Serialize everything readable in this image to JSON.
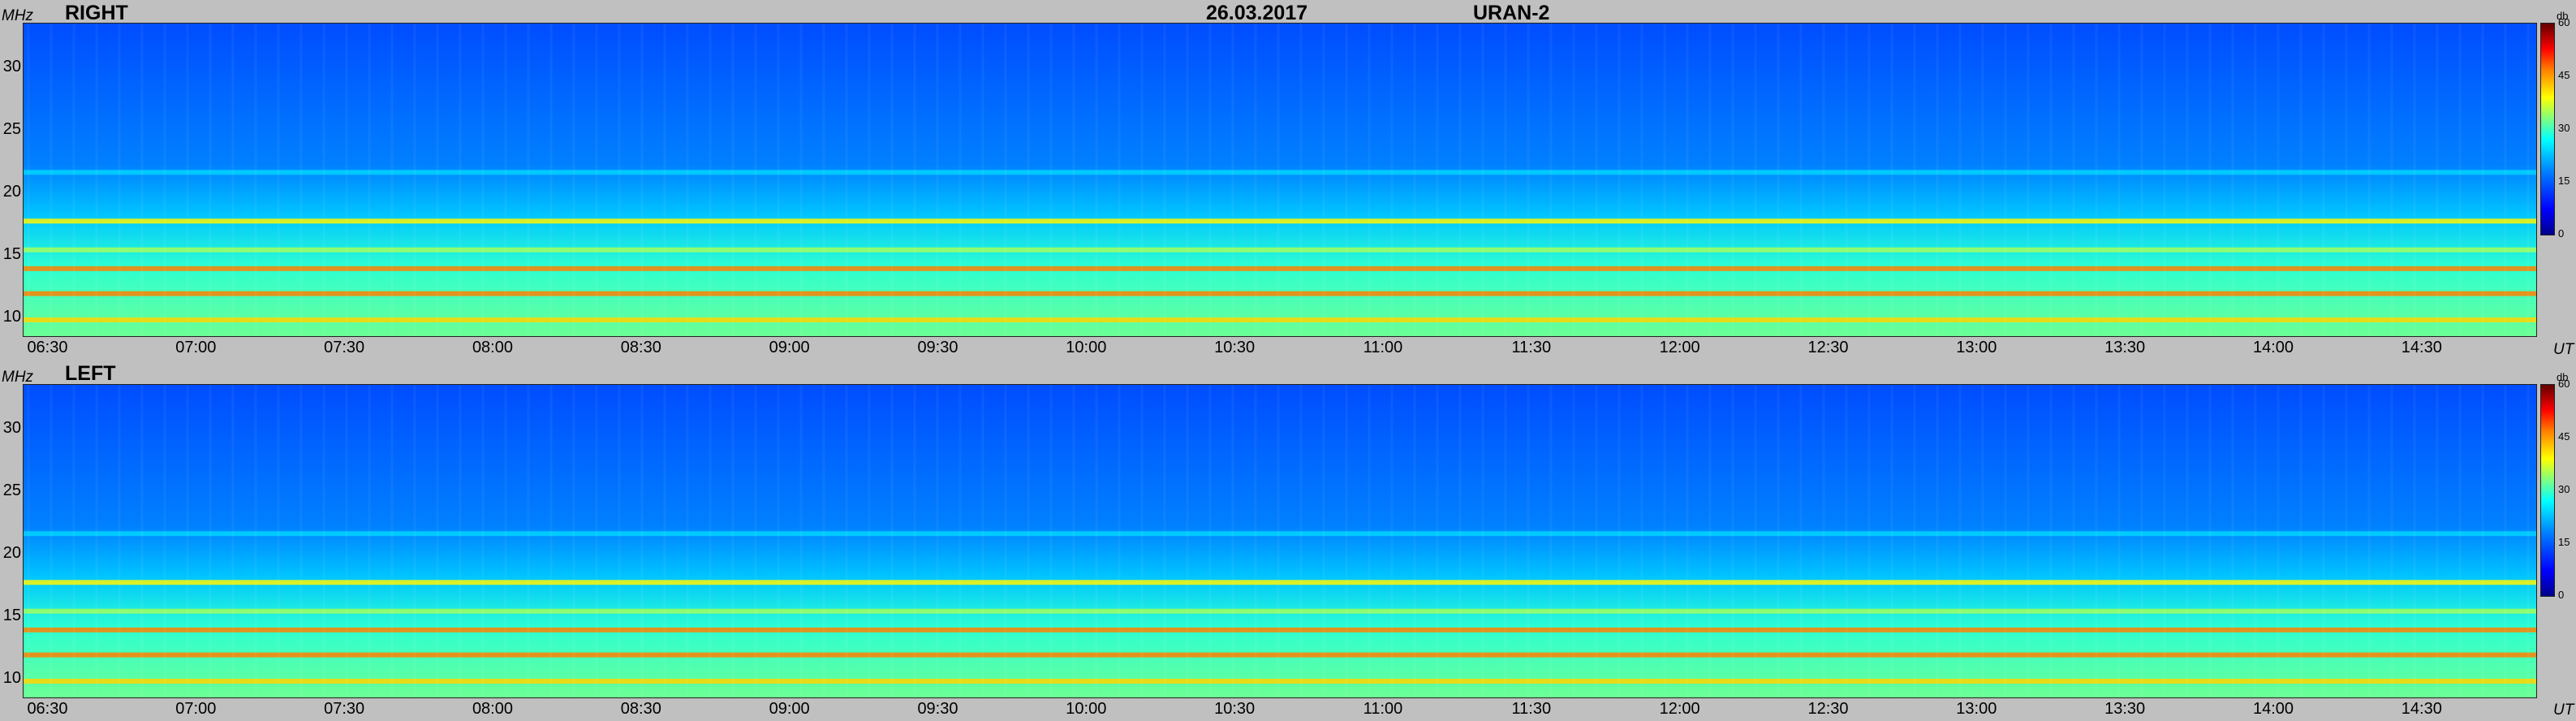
{
  "header": {
    "date": "26.03.2017",
    "instrument": "URAN-2"
  },
  "axis": {
    "y_unit": "MHz",
    "x_unit": "UT"
  },
  "colorbar": {
    "unit": "db",
    "ticks": [
      "60",
      "45",
      "30",
      "15",
      "0"
    ]
  },
  "chart_data": [
    {
      "type": "heatmap",
      "title": "RIGHT",
      "xlabel": "UT",
      "ylabel": "MHz",
      "x_ticks": [
        "06:30",
        "07:00",
        "07:30",
        "08:00",
        "08:30",
        "09:00",
        "09:30",
        "10:00",
        "10:30",
        "11:00",
        "11:30",
        "12:00",
        "12:30",
        "13:00",
        "13:30",
        "14:00",
        "14:30"
      ],
      "y_ticks": [
        "30",
        "25",
        "20",
        "15",
        "10"
      ],
      "xlim": [
        "06:25",
        "14:53"
      ],
      "ylim": [
        8.5,
        33.5
      ],
      "zlim": [
        0,
        60
      ],
      "colormap": "jet",
      "bands": [
        {
          "freq_mhz": 9.8,
          "level_db": 40
        },
        {
          "freq_mhz": 11.9,
          "level_db": 45
        },
        {
          "freq_mhz": 13.9,
          "level_db": 45
        },
        {
          "freq_mhz": 15.4,
          "level_db": 32
        },
        {
          "freq_mhz": 17.7,
          "level_db": 38
        },
        {
          "freq_mhz": 21.6,
          "level_db": 20
        }
      ]
    },
    {
      "type": "heatmap",
      "title": "LEFT",
      "xlabel": "UT",
      "ylabel": "MHz",
      "x_ticks": [
        "06:30",
        "07:00",
        "07:30",
        "08:00",
        "08:30",
        "09:00",
        "09:30",
        "10:00",
        "10:30",
        "11:00",
        "11:30",
        "12:00",
        "12:30",
        "13:00",
        "13:30",
        "14:00",
        "14:30"
      ],
      "y_ticks": [
        "30",
        "25",
        "20",
        "15",
        "10"
      ],
      "xlim": [
        "06:25",
        "14:53"
      ],
      "ylim": [
        8.5,
        33.5
      ],
      "zlim": [
        0,
        60
      ],
      "colormap": "jet",
      "bands": [
        {
          "freq_mhz": 9.8,
          "level_db": 40
        },
        {
          "freq_mhz": 11.9,
          "level_db": 45
        },
        {
          "freq_mhz": 13.9,
          "level_db": 45
        },
        {
          "freq_mhz": 15.4,
          "level_db": 32
        },
        {
          "freq_mhz": 17.7,
          "level_db": 38
        },
        {
          "freq_mhz": 21.6,
          "level_db": 20
        }
      ]
    }
  ]
}
